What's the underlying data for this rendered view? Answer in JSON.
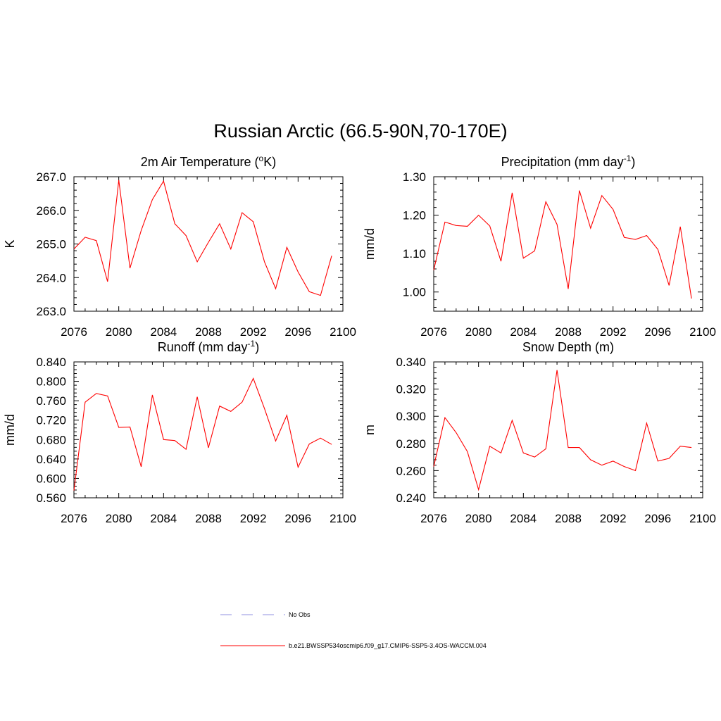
{
  "title": "Russian Arctic (66.5-90N,70-170E)",
  "legend": {
    "obs": {
      "label": "No Obs",
      "color": "#a6a6e6"
    },
    "model": {
      "label": "b.e21.BWSSP534oscmip6.f09_g17.CMIP6-SSP5-3.4OS-WACCM.004",
      "color": "#ff0000"
    }
  },
  "chart_data": [
    {
      "type": "line",
      "id": "temp",
      "title": "2m Air Temperature (",
      "title_sup": "o",
      "title_suffix": "K)",
      "ylabel": "K",
      "xlim": [
        2076,
        2100
      ],
      "ylim": [
        263.0,
        267.0
      ],
      "xticks": [
        "2076",
        "2080",
        "2084",
        "2088",
        "2092",
        "2096",
        "2100"
      ],
      "yticks": [
        "263.0",
        "264.0",
        "265.0",
        "266.0",
        "267.0"
      ],
      "x": [
        2076,
        2077,
        2078,
        2079,
        2080,
        2081,
        2082,
        2083,
        2084,
        2085,
        2086,
        2087,
        2088,
        2089,
        2090,
        2091,
        2092,
        2093,
        2094,
        2095,
        2096,
        2097,
        2098,
        2099
      ],
      "values": [
        264.85,
        265.2,
        265.1,
        263.88,
        266.9,
        264.28,
        265.4,
        266.32,
        266.87,
        265.6,
        265.25,
        264.47,
        265.05,
        265.6,
        264.85,
        265.93,
        265.66,
        264.47,
        263.67,
        264.9,
        264.17,
        263.58,
        263.47,
        264.65
      ],
      "color": "#ff0000"
    },
    {
      "type": "line",
      "id": "precip",
      "title": "Precipitation (mm day",
      "title_sup": "-1",
      "title_suffix": ")",
      "ylabel": "mm/d",
      "xlim": [
        2076,
        2100
      ],
      "ylim": [
        0.95,
        1.3
      ],
      "xticks": [
        "2076",
        "2080",
        "2084",
        "2088",
        "2092",
        "2096",
        "2100"
      ],
      "yticks": [
        "1.00",
        "1.10",
        "1.20",
        "1.30"
      ],
      "x": [
        2076,
        2077,
        2078,
        2079,
        2080,
        2081,
        2082,
        2083,
        2084,
        2085,
        2086,
        2087,
        2088,
        2089,
        2090,
        2091,
        2092,
        2093,
        2094,
        2095,
        2096,
        2097,
        2098,
        2099
      ],
      "values": [
        1.057,
        1.182,
        1.173,
        1.171,
        1.2,
        1.172,
        1.08,
        1.258,
        1.088,
        1.107,
        1.235,
        1.176,
        1.008,
        1.264,
        1.166,
        1.251,
        1.215,
        1.142,
        1.137,
        1.147,
        1.111,
        1.017,
        1.17,
        0.983
      ],
      "color": "#ff0000"
    },
    {
      "type": "line",
      "id": "runoff",
      "title": "Runoff (mm day",
      "title_sup": "-1",
      "title_suffix": ")",
      "ylabel": "mm/d",
      "xlim": [
        2076,
        2100
      ],
      "ylim": [
        0.56,
        0.84
      ],
      "xticks": [
        "2076",
        "2080",
        "2084",
        "2088",
        "2092",
        "2096",
        "2100"
      ],
      "yticks": [
        "0.560",
        "0.600",
        "0.640",
        "0.680",
        "0.720",
        "0.760",
        "0.800",
        "0.840"
      ],
      "x": [
        2076,
        2077,
        2078,
        2079,
        2080,
        2081,
        2082,
        2083,
        2084,
        2085,
        2086,
        2087,
        2088,
        2089,
        2090,
        2091,
        2092,
        2093,
        2094,
        2095,
        2096,
        2097,
        2098,
        2099
      ],
      "values": [
        0.575,
        0.757,
        0.775,
        0.77,
        0.705,
        0.706,
        0.624,
        0.772,
        0.68,
        0.678,
        0.66,
        0.768,
        0.663,
        0.749,
        0.738,
        0.757,
        0.806,
        0.744,
        0.677,
        0.73,
        0.623,
        0.671,
        0.683,
        0.67
      ],
      "color": "#ff0000"
    },
    {
      "type": "line",
      "id": "snow",
      "title": "Snow Depth (m)",
      "title_sup": "",
      "title_suffix": "",
      "ylabel": "m",
      "xlim": [
        2076,
        2100
      ],
      "ylim": [
        0.24,
        0.34
      ],
      "xticks": [
        "2076",
        "2080",
        "2084",
        "2088",
        "2092",
        "2096",
        "2100"
      ],
      "yticks": [
        "0.240",
        "0.260",
        "0.280",
        "0.300",
        "0.320",
        "0.340"
      ],
      "x": [
        2076,
        2077,
        2078,
        2079,
        2080,
        2081,
        2082,
        2083,
        2084,
        2085,
        2086,
        2087,
        2088,
        2089,
        2090,
        2091,
        2092,
        2093,
        2094,
        2095,
        2096,
        2097,
        2098,
        2099
      ],
      "values": [
        0.263,
        0.299,
        0.288,
        0.274,
        0.246,
        0.278,
        0.273,
        0.297,
        0.273,
        0.27,
        0.276,
        0.334,
        0.277,
        0.277,
        0.268,
        0.264,
        0.267,
        0.263,
        0.26,
        0.295,
        0.267,
        0.269,
        0.278,
        0.277
      ],
      "color": "#ff0000"
    }
  ]
}
